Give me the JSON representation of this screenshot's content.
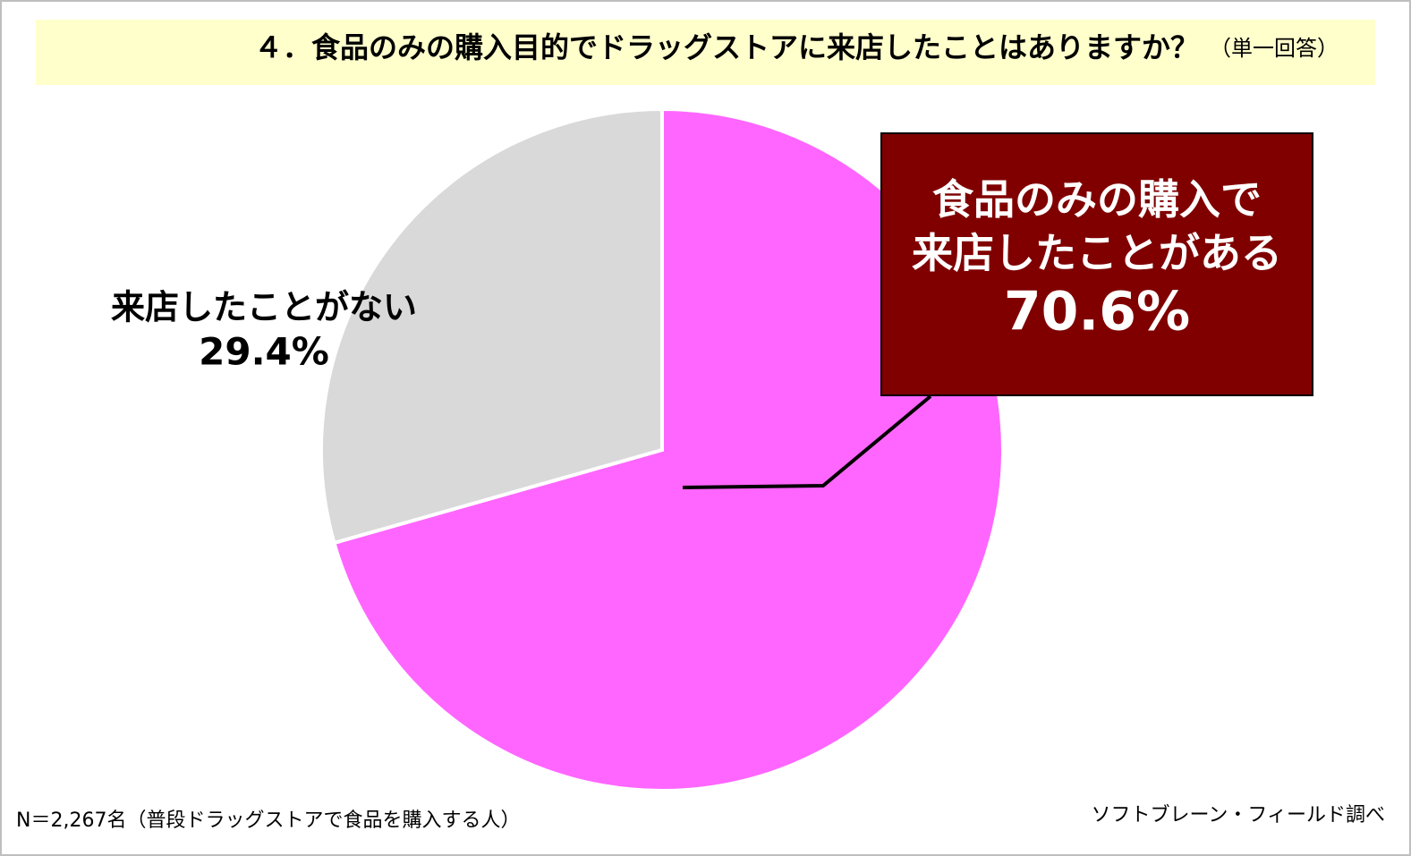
{
  "chart_data": {
    "type": "pie",
    "title": "４．食品のみの購入目的でドラッグストアに来店したことはありますか？",
    "subtitle": "（単一回答）",
    "categories": [
      "食品のみの購入で来店したことがある",
      "来店したことがない"
    ],
    "values": [
      70.6,
      29.4
    ],
    "value_labels": [
      "70.6%",
      "29.4%"
    ],
    "colors": [
      "#ff66ff",
      "#d9d9d9"
    ],
    "notes": [
      "N＝2,267名（普段ドラッグストアで食品を購入する人）",
      "ソフトブレーン・フィールド調べ"
    ]
  }
}
